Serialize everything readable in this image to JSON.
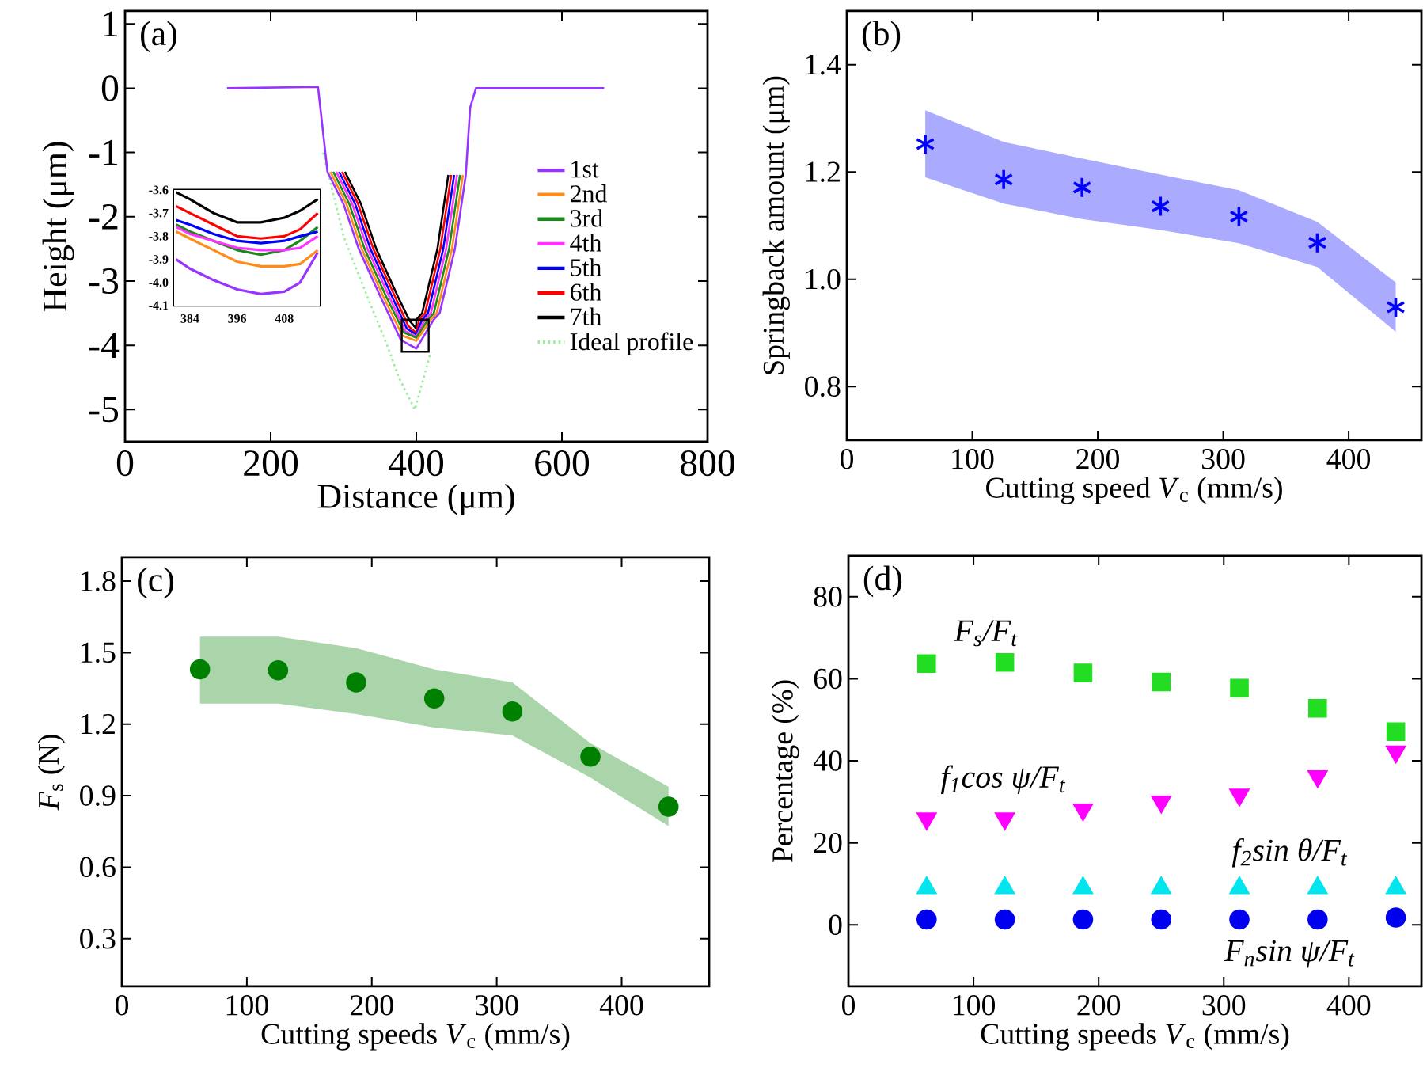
{
  "chart_data": [
    {
      "type": "line",
      "title": "(a)",
      "xlabel": "Distance (μm)",
      "ylabel": "Height (μm)",
      "xlim": [
        0,
        800
      ],
      "ylim": [
        -5.5,
        1.2
      ],
      "xticks": [
        0,
        200,
        400,
        600,
        800
      ],
      "yticks": [
        -5,
        -4,
        -3,
        -2,
        -1,
        0,
        1
      ],
      "legend": "right",
      "line_style": "solid",
      "marker": "none",
      "series": [
        {
          "name": "1st",
          "color": "#9933ff",
          "x": [
            140,
            265,
            278,
            300,
            321,
            351,
            379,
            400,
            424,
            432,
            453,
            468,
            474,
            482,
            658
          ],
          "values": [
            0,
            0.02,
            -1.3,
            -1.8,
            -2.5,
            -3.25,
            -3.92,
            -4.05,
            -3.6,
            -3.5,
            -2.5,
            -1.35,
            -0.3,
            0,
            0
          ]
        },
        {
          "name": "2nd",
          "color": "#ff8c1a",
          "x": [
            282,
            304,
            325,
            355,
            381,
            400,
            420,
            428,
            449,
            464
          ],
          "values": [
            -1.3,
            -1.8,
            -2.5,
            -3.25,
            -3.85,
            -3.93,
            -3.6,
            -3.5,
            -2.5,
            -1.35
          ]
        },
        {
          "name": "3rd",
          "color": "#1a8a1a",
          "x": [
            286,
            308,
            329,
            359,
            383,
            400,
            416,
            424,
            445,
            460
          ],
          "values": [
            -1.3,
            -1.8,
            -2.5,
            -3.25,
            -3.8,
            -3.88,
            -3.6,
            -3.5,
            -2.5,
            -1.35
          ]
        },
        {
          "name": "4th",
          "color": "#ff33ff",
          "x": [
            290,
            312,
            333,
            363,
            385,
            400,
            412,
            420,
            441,
            456
          ],
          "values": [
            -1.3,
            -1.8,
            -2.5,
            -3.25,
            -3.78,
            -3.86,
            -3.6,
            -3.5,
            -2.5,
            -1.35
          ]
        },
        {
          "name": "5th",
          "color": "#0000ff",
          "x": [
            294,
            316,
            337,
            367,
            387,
            400,
            408,
            416,
            437,
            452
          ],
          "values": [
            -1.3,
            -1.8,
            -2.5,
            -3.25,
            -3.74,
            -3.83,
            -3.6,
            -3.5,
            -2.5,
            -1.35
          ]
        },
        {
          "name": "6th",
          "color": "#ff0000",
          "x": [
            298,
            320,
            341,
            371,
            389,
            400,
            404,
            412,
            433,
            448
          ],
          "values": [
            -1.3,
            -1.8,
            -2.5,
            -3.25,
            -3.7,
            -3.81,
            -3.6,
            -3.5,
            -2.5,
            -1.35
          ]
        },
        {
          "name": "7th",
          "color": "#000000",
          "x": [
            302,
            324,
            345,
            375,
            391,
            400,
            400,
            408,
            429,
            444
          ],
          "values": [
            -1.3,
            -1.8,
            -2.5,
            -3.25,
            -3.62,
            -3.74,
            -3.6,
            -3.5,
            -2.5,
            -1.35
          ]
        },
        {
          "name": "Ideal profile",
          "color": "#99ee99",
          "line_style": "dotted",
          "x": [
            272,
            300,
            333,
            360,
            376,
            398,
            420
          ],
          "values": [
            -1.0,
            -2.3,
            -3.25,
            -4.0,
            -4.5,
            -5.0,
            -4.1
          ]
        }
      ]
    },
    {
      "type": "line",
      "xlim": [
        380,
        417
      ],
      "ylim": [
        -4.1,
        -3.6
      ],
      "xticks": [
        384,
        396,
        408
      ],
      "yticks": [
        -4.1,
        {
          "value": -4.0,
          "label": "-4.0"
        },
        -3.9,
        -3.8,
        -3.7,
        -3.6
      ],
      "line_style": "solid",
      "marker": "none",
      "x": [
        380.5,
        384,
        390,
        396,
        402,
        408,
        412,
        416.5
      ],
      "series": [
        {
          "color": "#9933ff",
          "values": [
            -3.9,
            -3.94,
            -3.99,
            -4.03,
            -4.05,
            -4.04,
            -4.0,
            -3.87
          ]
        },
        {
          "color": "#ff8c1a",
          "values": [
            -3.78,
            -3.81,
            -3.86,
            -3.91,
            -3.93,
            -3.93,
            -3.92,
            -3.86
          ]
        },
        {
          "color": "#1a8a1a",
          "values": [
            -3.75,
            -3.78,
            -3.82,
            -3.86,
            -3.88,
            -3.86,
            -3.82,
            -3.76
          ]
        },
        {
          "color": "#ff33ff",
          "values": [
            -3.76,
            -3.79,
            -3.82,
            -3.85,
            -3.86,
            -3.86,
            -3.85,
            -3.8
          ]
        },
        {
          "color": "#0000ff",
          "values": [
            -3.73,
            -3.75,
            -3.79,
            -3.82,
            -3.83,
            -3.82,
            -3.8,
            -3.78
          ]
        },
        {
          "color": "#ff0000",
          "values": [
            -3.67,
            -3.7,
            -3.75,
            -3.8,
            -3.81,
            -3.8,
            -3.77,
            -3.7
          ]
        },
        {
          "color": "#000000",
          "values": [
            -3.61,
            -3.64,
            -3.7,
            -3.74,
            -3.74,
            -3.72,
            -3.69,
            -3.64
          ]
        }
      ]
    },
    {
      "type": "scatter",
      "title": "(b)",
      "xlabel": "Cutting speed *V*$_{c}$ (mm/s)",
      "ylabel": "Springback amount (μm)",
      "xlim": [
        0,
        458
      ],
      "ylim": [
        0.7,
        1.5
      ],
      "xticks": [
        0,
        100,
        200,
        300,
        400
      ],
      "yticks": [
        0.8,
        {
          "value": 1.0,
          "label": "1.0"
        },
        1.2,
        1.4
      ],
      "marker": "cross",
      "x": [
        62.5,
        125,
        187.5,
        250,
        312.5,
        375,
        437.5
      ],
      "series": [
        {
          "color": "#0000ff",
          "values": [
            1.252,
            1.186,
            1.171,
            1.136,
            1.117,
            1.068,
            0.948
          ],
          "lower": [
            1.19,
            1.141,
            1.112,
            1.092,
            1.067,
            1.023,
            0.902
          ],
          "upper": [
            1.315,
            1.256,
            1.225,
            1.195,
            1.166,
            1.107,
            0.994
          ]
        }
      ]
    },
    {
      "type": "scatter",
      "title": "(c)",
      "xlabel": "Cutting speeds *V*$_{c}$ (mm/s)",
      "ylabel": "*F*$_{s}$ (N)",
      "xlim": [
        0,
        470
      ],
      "ylim": [
        0.1,
        1.9
      ],
      "xticks": [
        0,
        100,
        200,
        300,
        400
      ],
      "yticks": [
        0.3,
        0.6,
        0.9,
        1.2,
        1.5,
        1.8
      ],
      "marker": "circle",
      "x": [
        62.5,
        125,
        187.5,
        250,
        312.5,
        375,
        437.5
      ],
      "series": [
        {
          "color": "#008000",
          "values": [
            1.43,
            1.426,
            1.375,
            1.308,
            1.253,
            1.064,
            0.854
          ],
          "lower": [
            1.286,
            1.286,
            1.242,
            1.186,
            1.153,
            0.976,
            0.772
          ],
          "upper": [
            1.567,
            1.567,
            1.519,
            1.43,
            1.375,
            1.12,
            0.938
          ]
        }
      ]
    },
    {
      "type": "scatter",
      "xlabel": "Cutting speeds *V*$_{c}$ (mm/s)",
      "ylabel": "Percentage (%)",
      "title": "(d)",
      "xlim": [
        0,
        458
      ],
      "ylim": [
        -15,
        90
      ],
      "xticks": [
        0,
        100,
        200,
        300,
        400
      ],
      "yticks": [
        0,
        20,
        40,
        60,
        80
      ],
      "x": [
        62.5,
        125,
        187.5,
        250,
        312.5,
        375,
        437.5
      ],
      "series": [
        {
          "name": "F$_{s}$/F$_{t}$",
          "color": "#22dd22",
          "marker": "square",
          "values": [
            63.7,
            64.0,
            61.4,
            59.2,
            57.7,
            52.8,
            47.1
          ]
        },
        {
          "name": "f$_{1}$cos ψ/F$_{t}$",
          "color": "#ff00ff",
          "marker": "triangle-down",
          "values": [
            25.9,
            25.9,
            28.1,
            30.0,
            31.7,
            36.2,
            42.2
          ]
        },
        {
          "name": "f$_{2}$sin θ/F$_{t}$",
          "color": "#00e5ee",
          "marker": "triangle",
          "values": [
            9,
            9,
            9,
            9,
            9,
            9,
            9
          ]
        },
        {
          "name": "F$_{n}$sin ψ/F$_{t}$",
          "color": "#0000ee",
          "marker": "circle",
          "values": [
            1.3,
            1.3,
            1.3,
            1.3,
            1.3,
            1.3,
            1.8
          ]
        }
      ]
    }
  ]
}
